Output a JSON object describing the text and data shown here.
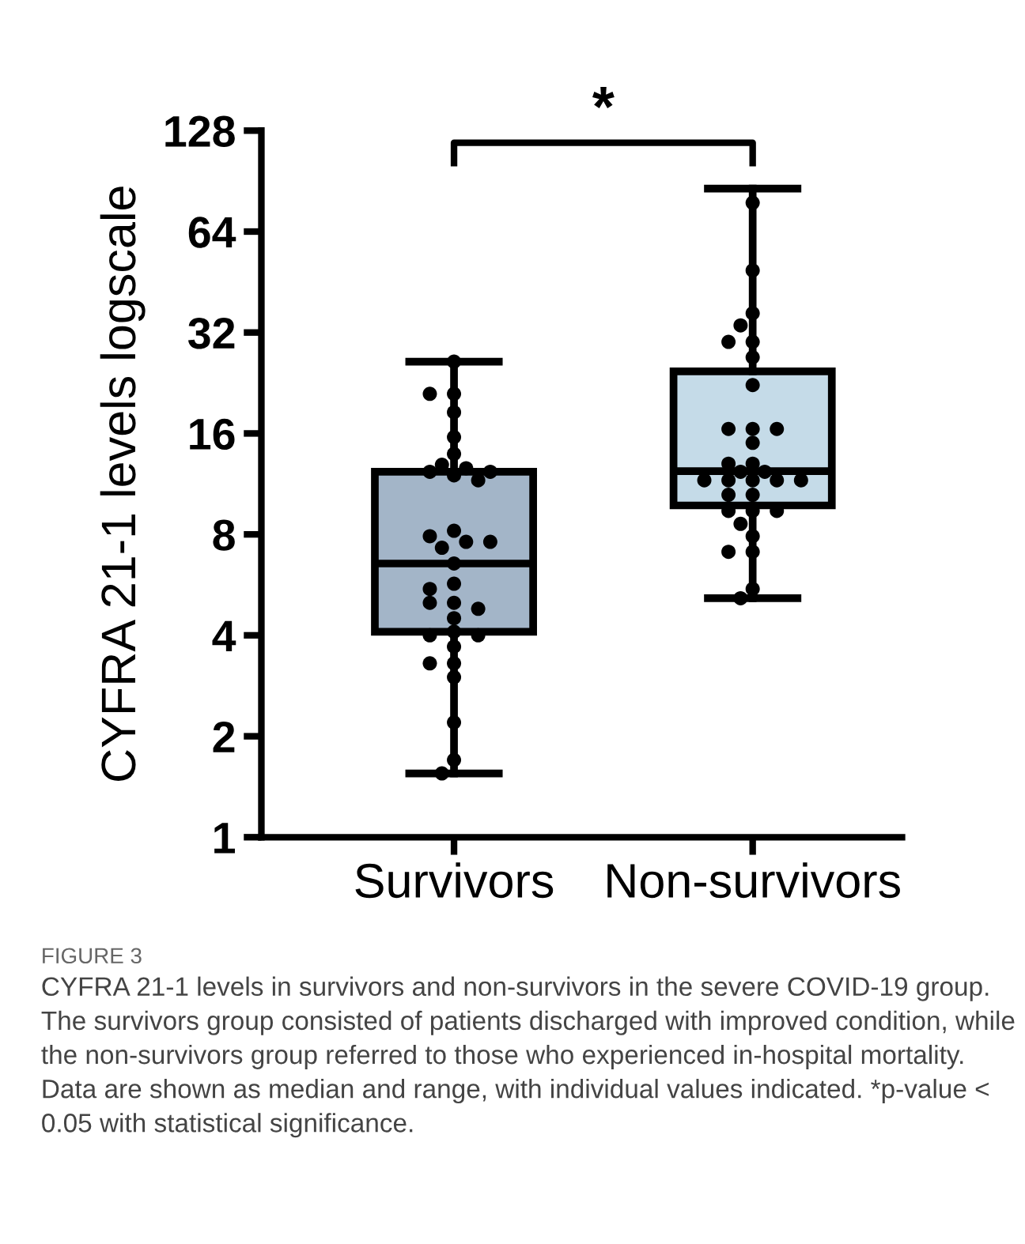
{
  "chart_data": {
    "type": "box",
    "categories": [
      "Survivors",
      "Non-survivors"
    ],
    "ylabel": "CYFRA 21-1 levels logscale",
    "log": "y",
    "ylim": [
      1,
      128
    ],
    "yticks": [
      1,
      2,
      4,
      8,
      16,
      32,
      64,
      128
    ],
    "grid": false,
    "colors": [
      "#a3b5c8",
      "#c5dbe8"
    ],
    "boxes": [
      {
        "low": 1.55,
        "q1": 4.1,
        "median": 6.55,
        "q3": 12.3,
        "high": 26.2
      },
      {
        "low": 5.16,
        "q1": 9.76,
        "median": 12.35,
        "q3": 24.5,
        "high": 86
      }
    ],
    "series": [
      {
        "type": "scatter",
        "color": "#000000",
        "marker": "circle",
        "x": [
          "Survivors",
          "Survivors",
          "Survivors",
          "Survivors",
          "Survivors",
          "Survivors",
          "Survivors",
          "Survivors",
          "Survivors",
          "Survivors",
          "Survivors",
          "Survivors",
          "Survivors",
          "Survivors",
          "Survivors",
          "Survivors",
          "Survivors",
          "Survivors",
          "Survivors",
          "Survivors",
          "Survivors",
          "Survivors",
          "Survivors",
          "Survivors",
          "Survivors",
          "Survivors",
          "Survivors",
          "Survivors",
          "Survivors",
          "Survivors",
          "Survivors",
          "Survivors",
          "Survivors",
          "Survivors",
          "Non-survivors",
          "Non-survivors",
          "Non-survivors",
          "Non-survivors",
          "Non-survivors",
          "Non-survivors",
          "Non-survivors",
          "Non-survivors",
          "Non-survivors",
          "Non-survivors",
          "Non-survivors",
          "Non-survivors",
          "Non-survivors",
          "Non-survivors",
          "Non-survivors",
          "Non-survivors",
          "Non-survivors",
          "Non-survivors",
          "Non-survivors",
          "Non-survivors",
          "Non-survivors",
          "Non-survivors",
          "Non-survivors",
          "Non-survivors",
          "Non-survivors",
          "Non-survivors",
          "Non-survivors",
          "Non-survivors",
          "Non-survivors",
          "Non-survivors",
          "Non-survivors",
          "Non-survivors"
        ],
        "values": [
          21,
          21,
          18.5,
          15.6,
          13.9,
          12.9,
          12.6,
          12.3,
          12.0,
          11.6,
          8.2,
          7.9,
          7.6,
          7.6,
          7.3,
          5.7,
          5.5,
          5.0,
          5.0,
          4.8,
          4.5,
          4.0,
          4.1,
          4.0,
          3.7,
          3.3,
          3.3,
          3.0,
          2.2,
          1.7,
          1.55,
          26.2,
          12.3,
          6.55,
          78,
          49,
          36.5,
          33.6,
          30,
          30,
          27,
          22.3,
          16.5,
          16.5,
          16.5,
          15,
          13,
          13,
          12.3,
          12.3,
          11.6,
          11.6,
          11.6,
          11.6,
          11.6,
          10.5,
          10.5,
          9.4,
          9.4,
          9.4,
          8.6,
          7.9,
          7.1,
          7.1,
          5.5,
          5.16
        ]
      }
    ],
    "annotations": [
      "*",
      "FIGURE 3",
      "CYFRA 21-1 levels in survivors and non-survivors in the severe COVID-19 group. The survivors group consisted of patients discharged with improved condition, while the non-survivors group referred to those who experienced in-hospital mortality. Data are shown as median and range, with individual values indicated. *p-value < 0.05 with statistical significance."
    ]
  }
}
